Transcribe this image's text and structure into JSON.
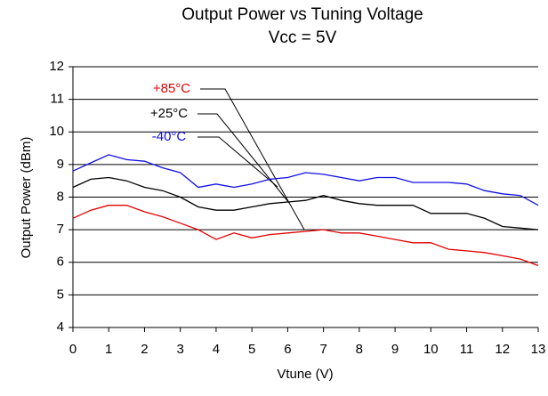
{
  "chart_data": {
    "type": "line",
    "title": "Output Power vs Tuning Voltage",
    "subtitle": "Vcc = 5V",
    "x_label": "Vtune (V)",
    "y_label": "Output Power (dBm)",
    "x": [
      0,
      0.5,
      1,
      1.5,
      2,
      2.5,
      3,
      3.5,
      4,
      4.5,
      5,
      5.5,
      6,
      6.5,
      7,
      7.5,
      8,
      8.5,
      9,
      9.5,
      10,
      10.5,
      11,
      11.5,
      12,
      12.5,
      13
    ],
    "series": [
      {
        "name": "+85°C",
        "color": "#e00000",
        "values": [
          7.35,
          7.6,
          7.75,
          7.75,
          7.55,
          7.4,
          7.2,
          7.0,
          6.7,
          6.9,
          6.75,
          6.85,
          6.9,
          6.95,
          7.0,
          6.9,
          6.9,
          6.8,
          6.7,
          6.6,
          6.6,
          6.4,
          6.35,
          6.3,
          6.2,
          6.1,
          5.9
        ]
      },
      {
        "name": "+25°C",
        "color": "#000000",
        "values": [
          8.3,
          8.55,
          8.6,
          8.5,
          8.3,
          8.2,
          8.0,
          7.7,
          7.6,
          7.6,
          7.7,
          7.8,
          7.85,
          7.9,
          8.05,
          7.9,
          7.8,
          7.75,
          7.75,
          7.75,
          7.5,
          7.5,
          7.5,
          7.35,
          7.1,
          7.05,
          7.0
        ]
      },
      {
        "name": "-40°C",
        "color": "#1010e0",
        "values": [
          8.8,
          9.05,
          9.3,
          9.15,
          9.1,
          8.9,
          8.75,
          8.3,
          8.4,
          8.3,
          8.4,
          8.55,
          8.6,
          8.75,
          8.7,
          8.6,
          8.5,
          8.6,
          8.6,
          8.45,
          8.45,
          8.45,
          8.4,
          8.2,
          8.1,
          8.05,
          7.75
        ]
      }
    ],
    "xlim": [
      0,
      13
    ],
    "ylim": [
      4,
      12
    ],
    "xticks": [
      0,
      1,
      2,
      3,
      4,
      5,
      6,
      7,
      8,
      9,
      10,
      11,
      12,
      13
    ],
    "yticks": [
      4,
      5,
      6,
      7,
      8,
      9,
      10,
      11,
      12
    ],
    "grid": true
  }
}
